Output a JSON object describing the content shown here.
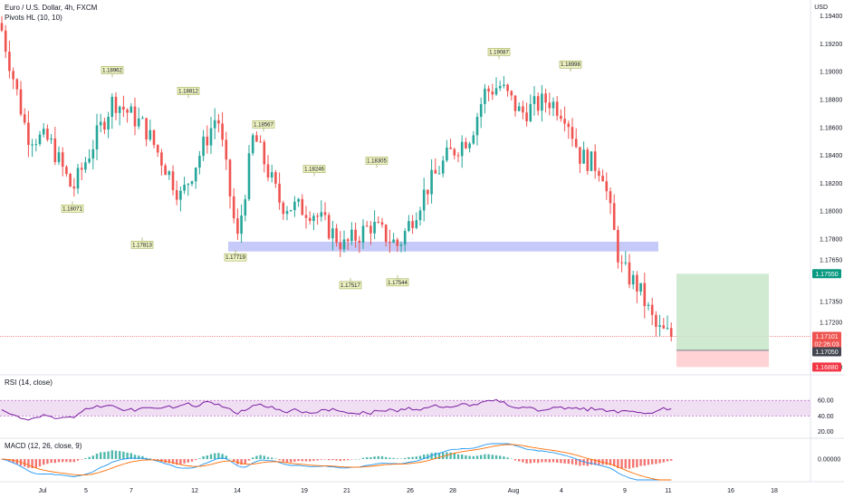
{
  "header": {
    "symbol_title": "Euro / U.S. Dollar, 4h, FXCM",
    "indicator": "Pivots HL (10, 10)",
    "currency": "USD"
  },
  "rsi_panel": {
    "title": "RSI (14, close)"
  },
  "macd_panel": {
    "title": "MACD (12, 26, close, 9)"
  },
  "colors": {
    "up": "#26a69a",
    "down": "#ef5350",
    "rsi_line": "#7b1fa2",
    "rsi_band": "#e1bee7",
    "macd_line": "#2196f3",
    "signal_line": "#ff6d00",
    "target_fill": "#c8e6c9",
    "stop_fill": "#ffcdd2",
    "support_band": "#b3b8f5",
    "pivot_label": "#f0f4c3"
  },
  "price_axis": {
    "ticks": [
      "1.19400",
      "1.19200",
      "1.19000",
      "1.18800",
      "1.18600",
      "1.18400",
      "1.18200",
      "1.18000",
      "1.17800",
      "1.17650",
      "1.17350",
      "1.17200",
      "1.16880"
    ]
  },
  "price_tags": [
    {
      "label": "1.17550",
      "price": 1.1755,
      "color": "#089981"
    },
    {
      "label": "1.17101",
      "price": 1.171,
      "color": "#ef5350"
    },
    {
      "label": "02:26:03",
      "price": 1.17045,
      "color": "#ef5350"
    },
    {
      "label": "1.17050",
      "price": 1.1699,
      "color": "#434651"
    },
    {
      "label": "1.16880",
      "price": 1.1688,
      "color": "#f23645"
    }
  ],
  "rsi_axis": {
    "ticks": [
      "60.00",
      "40.00",
      "20.00"
    ]
  },
  "macd_axis": {
    "ticks": [
      "0.00000"
    ]
  },
  "time_axis": {
    "ticks": [
      "Jul",
      "5",
      "7",
      "12",
      "14",
      "19",
      "21",
      "26",
      "28",
      "Aug",
      "4",
      "9",
      "11",
      "16",
      "18"
    ]
  },
  "chart_data": {
    "type": "candlestick",
    "x_domain": [
      "Jul",
      "Aug"
    ],
    "y_range": [
      1.1685,
      1.1945
    ],
    "pivot_labels": [
      {
        "label": "1.18962",
        "price": 1.1896
      },
      {
        "label": "1.18071",
        "price": 1.1807
      },
      {
        "label": "1.18812",
        "price": 1.1881
      },
      {
        "label": "1.17813",
        "price": 1.1781
      },
      {
        "label": "1.18567",
        "price": 1.1857
      },
      {
        "label": "1.17719",
        "price": 1.1772
      },
      {
        "label": "1.18246",
        "price": 1.1825
      },
      {
        "label": "1.18305",
        "price": 1.1831
      },
      {
        "label": "1.17517",
        "price": 1.1752
      },
      {
        "label": "1.17544",
        "price": 1.1754
      },
      {
        "label": "1.19087",
        "price": 1.1909
      },
      {
        "label": "1.18998",
        "price": 1.19
      }
    ],
    "support_zone": [
      1.1771,
      1.1778
    ],
    "position": {
      "target": 1.1755,
      "entry": 1.17,
      "stop": 1.1688
    },
    "current_price": 1.171,
    "rsi_band": [
      40,
      60
    ]
  }
}
